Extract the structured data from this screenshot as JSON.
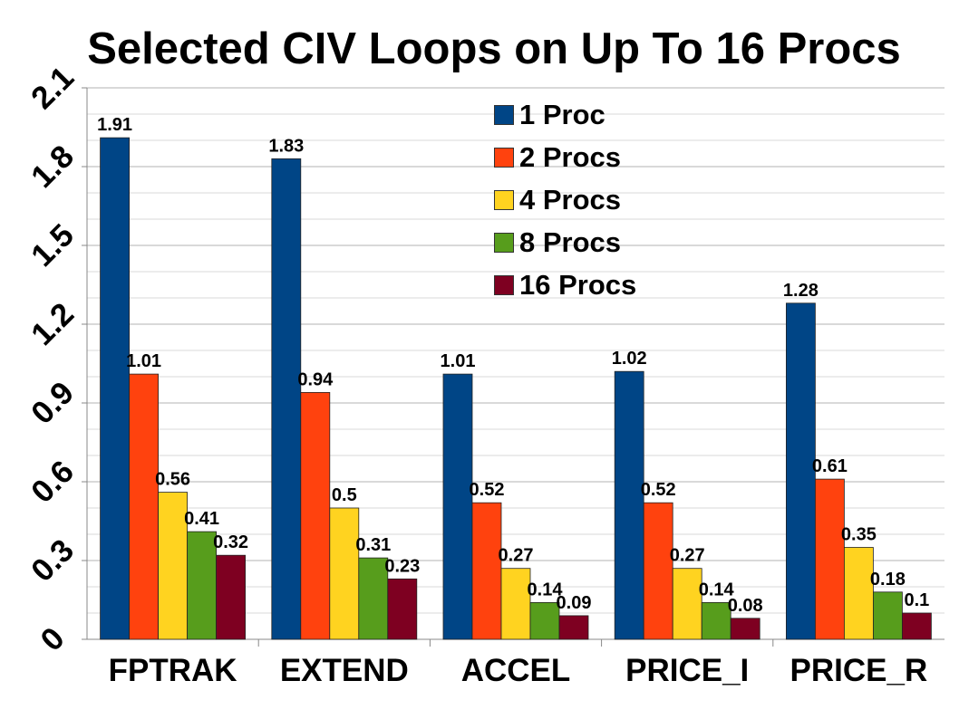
{
  "chart_data": {
    "type": "bar",
    "title": "Selected CIV Loops on Up To 16 Procs",
    "xlabel": "",
    "ylabel": "",
    "categories": [
      "FPTRAK",
      "EXTEND",
      "ACCEL",
      "PRICE_I",
      "PRICE_R"
    ],
    "ylim": [
      0,
      2.1
    ],
    "yticks": [
      "0",
      "0.3",
      "0.6",
      "0.9",
      "1.2",
      "1.5",
      "1.8",
      "2.1"
    ],
    "grid": true,
    "legend_position": "top-right",
    "series": [
      {
        "name": "1 Proc",
        "color": "#004586",
        "values": [
          1.91,
          1.83,
          1.01,
          1.02,
          1.28
        ],
        "labels": [
          "1.91",
          "1.83",
          "1.01",
          "1.02",
          "1.28"
        ]
      },
      {
        "name": "2 Procs",
        "color": "#ff420e",
        "values": [
          1.01,
          0.94,
          0.52,
          0.52,
          0.61
        ],
        "labels": [
          "1.01",
          "0.94",
          "0.52",
          "0.52",
          "0.61"
        ]
      },
      {
        "name": "4 Procs",
        "color": "#ffd320",
        "values": [
          0.56,
          0.5,
          0.27,
          0.27,
          0.35
        ],
        "labels": [
          "0.56",
          "0.5",
          "0.27",
          "0.27",
          "0.35"
        ]
      },
      {
        "name": "8 Procs",
        "color": "#579d1c",
        "values": [
          0.41,
          0.31,
          0.14,
          0.14,
          0.18
        ],
        "labels": [
          "0.41",
          "0.31",
          "0.14",
          "0.14",
          "0.18"
        ]
      },
      {
        "name": "16 Procs",
        "color": "#7e0021",
        "values": [
          0.32,
          0.23,
          0.09,
          0.08,
          0.1
        ],
        "labels": [
          "0.32",
          "0.23",
          "0.09",
          "0.08",
          "0.1"
        ]
      }
    ]
  }
}
